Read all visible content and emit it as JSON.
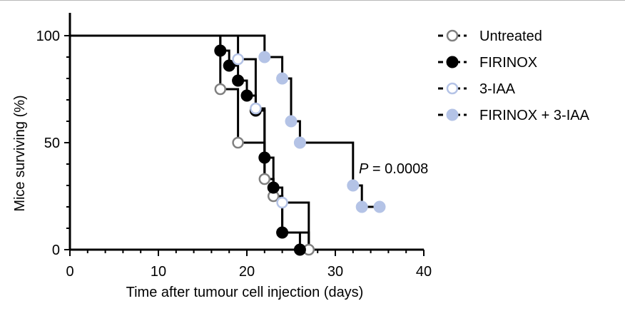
{
  "chart_data": {
    "type": "line",
    "subtype": "kaplan-meier-survival",
    "xlabel": "Time after tumour cell injection (days)",
    "ylabel": "Mice surviving (%)",
    "xlim": [
      0,
      40
    ],
    "ylim": [
      0,
      100
    ],
    "xticks": [
      "0",
      "10",
      "20",
      "30",
      "40"
    ],
    "yticks": [
      "0",
      "50",
      "100"
    ],
    "grid": false,
    "legend_position": "right",
    "annotation": {
      "text_italic": "P",
      "text_rest": " = 0.0008"
    },
    "series": [
      {
        "name": "Untreated",
        "color": "#808080",
        "marker": "open-circle",
        "steps": [
          [
            0,
            100
          ],
          [
            17,
            75
          ],
          [
            19,
            50
          ],
          [
            22,
            33
          ],
          [
            23,
            25
          ],
          [
            24,
            8
          ],
          [
            27,
            0
          ]
        ],
        "points": [
          [
            17,
            75
          ],
          [
            19,
            50
          ],
          [
            22,
            33
          ],
          [
            23,
            25
          ],
          [
            24,
            8
          ],
          [
            27,
            0
          ]
        ]
      },
      {
        "name": "FIRINOX",
        "color": "#000000",
        "marker": "filled-circle",
        "steps": [
          [
            0,
            100
          ],
          [
            17,
            93
          ],
          [
            18,
            86
          ],
          [
            19,
            79
          ],
          [
            20,
            72
          ],
          [
            21,
            65
          ],
          [
            22,
            43
          ],
          [
            23,
            29
          ],
          [
            24,
            8
          ],
          [
            26,
            0
          ]
        ],
        "points": [
          [
            17,
            93
          ],
          [
            18,
            86
          ],
          [
            19,
            79
          ],
          [
            20,
            72
          ],
          [
            21,
            65
          ],
          [
            22,
            43
          ],
          [
            23,
            29
          ],
          [
            24,
            8
          ],
          [
            26,
            0
          ]
        ]
      },
      {
        "name": "3-IAA",
        "color": "#b4c3e6",
        "marker": "open-circle",
        "steps": [
          [
            0,
            100
          ],
          [
            19,
            89
          ],
          [
            21,
            66
          ],
          [
            22,
            33
          ],
          [
            23,
            25
          ],
          [
            24,
            22
          ],
          [
            27,
            0
          ]
        ],
        "points": [
          [
            19,
            89
          ],
          [
            21,
            66
          ],
          [
            24,
            22
          ]
        ]
      },
      {
        "name": "FIRINOX + 3-IAA",
        "color": "#b4c3e6",
        "marker": "filled-circle",
        "steps": [
          [
            0,
            100
          ],
          [
            22,
            90
          ],
          [
            24,
            80
          ],
          [
            25,
            60
          ],
          [
            26,
            50
          ],
          [
            32,
            30
          ],
          [
            33,
            20
          ],
          [
            35,
            20
          ]
        ],
        "points": [
          [
            22,
            90
          ],
          [
            24,
            80
          ],
          [
            25,
            60
          ],
          [
            26,
            50
          ],
          [
            32,
            30
          ],
          [
            33,
            20
          ],
          [
            35,
            20
          ]
        ]
      }
    ]
  }
}
